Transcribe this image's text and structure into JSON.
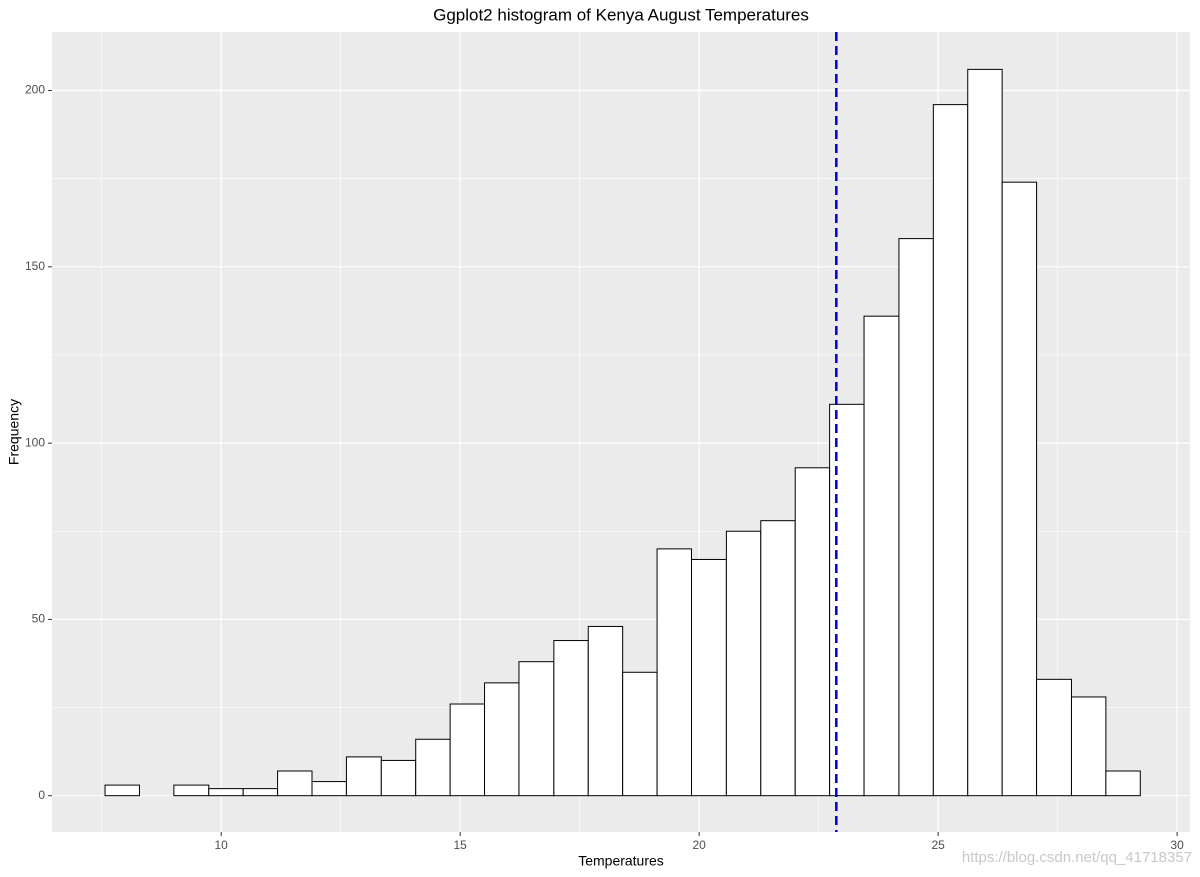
{
  "chart_data": {
    "type": "histogram",
    "title": "Ggplot2 histogram of Kenya August Temperatures",
    "x_label": "Temperatures",
    "y_label": "Frequency",
    "bins": [
      7.57,
      8.29,
      9.01,
      9.74,
      10.46,
      11.18,
      11.9,
      12.62,
      13.35,
      14.07,
      14.79,
      15.51,
      16.23,
      16.96,
      17.68,
      18.4,
      19.12,
      19.84,
      20.57,
      21.29,
      22.01,
      22.73,
      23.45,
      24.18,
      24.9,
      25.62,
      26.34,
      27.06,
      27.79,
      28.51,
      29.23
    ],
    "counts": [
      3,
      0,
      3,
      2,
      2,
      7,
      4,
      11,
      10,
      16,
      26,
      32,
      38,
      44,
      48,
      35,
      70,
      67,
      75,
      78,
      93,
      111,
      136,
      158,
      196,
      206,
      174,
      33,
      28,
      7
    ],
    "fill": "#ffffff",
    "edge_color": "#000000",
    "vline": 22.87,
    "vline_color": "#0000cd",
    "xlim": [
      6.46,
      30.27
    ],
    "xticks": [
      10,
      15,
      20,
      25,
      30
    ],
    "ylim": [
      -10.3,
      216.6
    ],
    "yticks": [
      0,
      50,
      100,
      150,
      200
    ],
    "grid": true,
    "watermark": "https://blog.csdn.net/qq_41718357"
  }
}
